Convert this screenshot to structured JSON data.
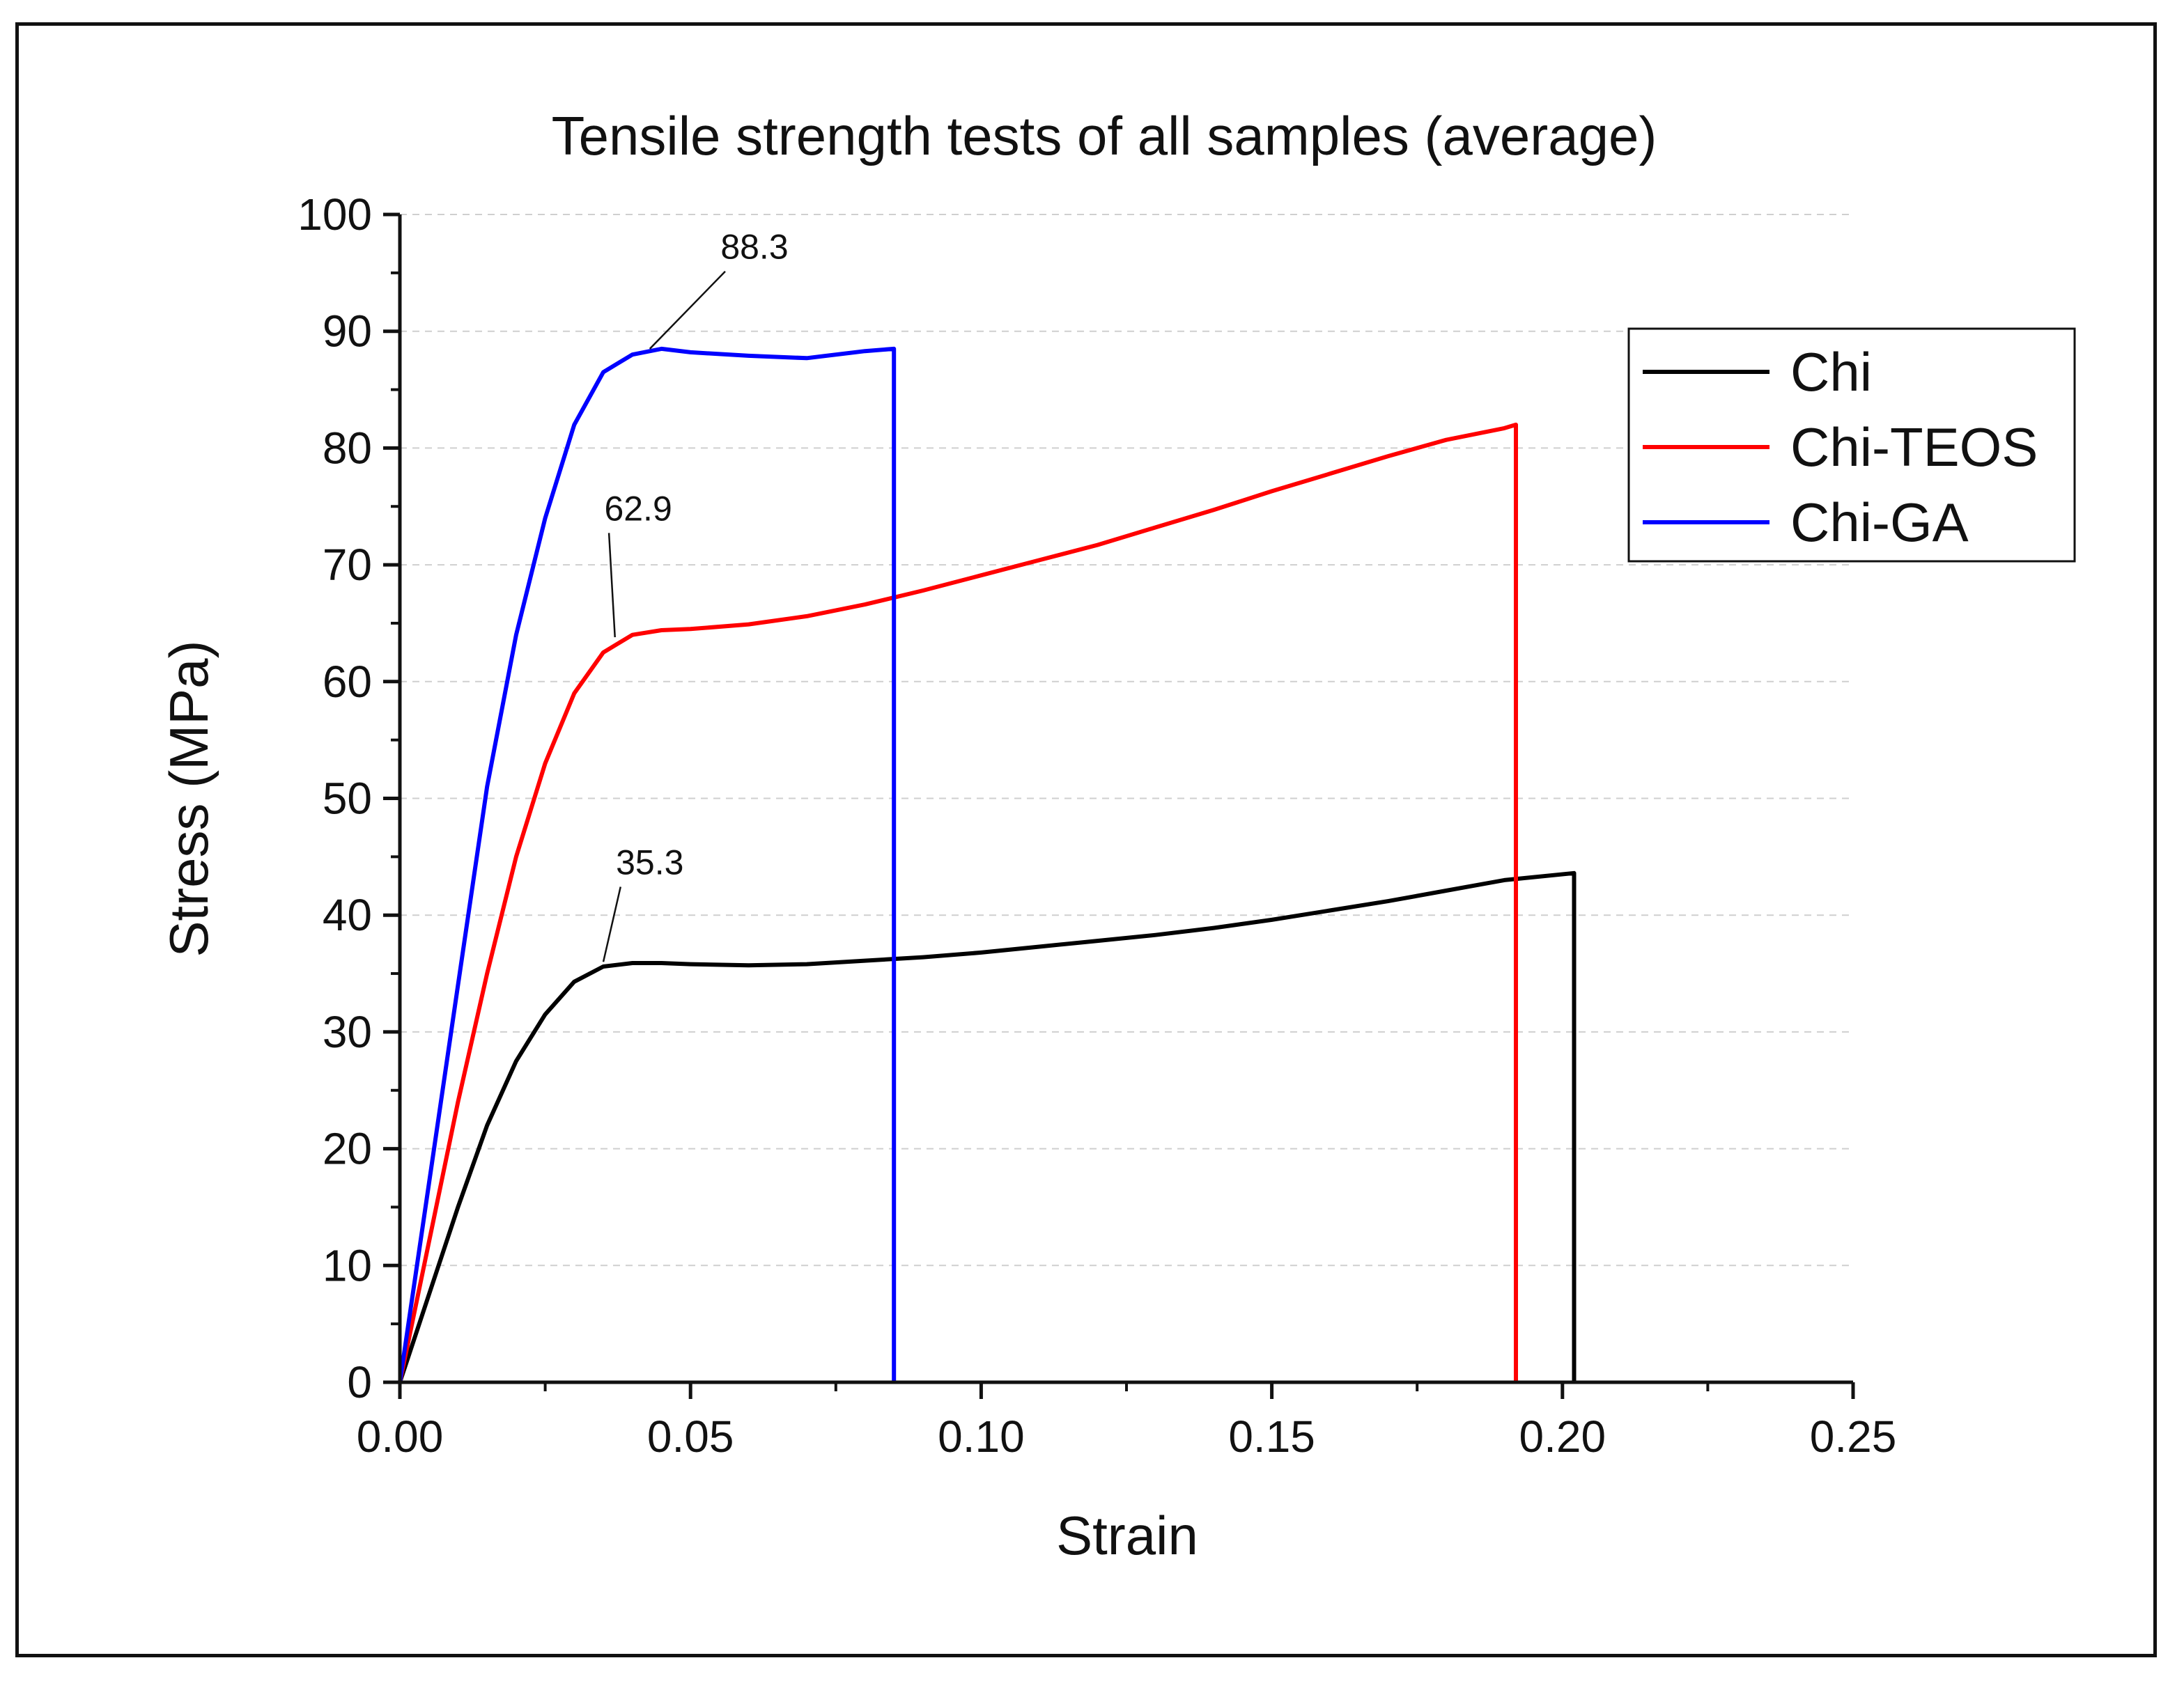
{
  "chart_data": {
    "type": "line",
    "title": "Tensile strength tests of all samples (average)",
    "xlabel": "Strain",
    "ylabel": "Stress (MPa)",
    "xlim": [
      0,
      0.25
    ],
    "ylim": [
      0,
      100
    ],
    "xticks": [
      "0.00",
      "0.05",
      "0.10",
      "0.15",
      "0.20",
      "0.25"
    ],
    "xtick_values": [
      0,
      0.05,
      0.1,
      0.15,
      0.2,
      0.25
    ],
    "yticks": [
      "0",
      "10",
      "20",
      "30",
      "40",
      "50",
      "60",
      "70",
      "80",
      "90",
      "100"
    ],
    "ytick_values": [
      0,
      10,
      20,
      30,
      40,
      50,
      60,
      70,
      80,
      90,
      100
    ],
    "grid": "horizontal dashed",
    "legend_position": "top-right",
    "series": [
      {
        "name": "Chi",
        "color": "#000000",
        "x": [
          0,
          0.005,
          0.01,
          0.015,
          0.02,
          0.025,
          0.03,
          0.035,
          0.04,
          0.045,
          0.05,
          0.06,
          0.07,
          0.08,
          0.09,
          0.1,
          0.11,
          0.12,
          0.13,
          0.14,
          0.15,
          0.16,
          0.17,
          0.18,
          0.19,
          0.202,
          0.202
        ],
        "y": [
          0,
          7.5,
          15,
          22,
          27.5,
          31.5,
          34.3,
          35.6,
          35.9,
          35.9,
          35.8,
          35.7,
          35.8,
          36.1,
          36.4,
          36.8,
          37.3,
          37.8,
          38.3,
          38.9,
          39.6,
          40.4,
          41.2,
          42.1,
          43.0,
          43.6,
          0
        ]
      },
      {
        "name": "Chi-TEOS",
        "color": "#ff0000",
        "x": [
          0,
          0.005,
          0.01,
          0.015,
          0.02,
          0.025,
          0.03,
          0.035,
          0.04,
          0.045,
          0.05,
          0.06,
          0.07,
          0.08,
          0.09,
          0.1,
          0.11,
          0.12,
          0.13,
          0.14,
          0.15,
          0.16,
          0.17,
          0.18,
          0.19,
          0.192,
          0.192
        ],
        "y": [
          0,
          12,
          24,
          35,
          45,
          53,
          59,
          62.5,
          64,
          64.4,
          64.5,
          64.9,
          65.6,
          66.6,
          67.8,
          69.1,
          70.4,
          71.7,
          73.2,
          74.7,
          76.3,
          77.8,
          79.3,
          80.7,
          81.7,
          82,
          0
        ]
      },
      {
        "name": "Chi-GA",
        "color": "#0000ff",
        "x": [
          0,
          0.005,
          0.01,
          0.015,
          0.02,
          0.025,
          0.03,
          0.035,
          0.04,
          0.045,
          0.05,
          0.06,
          0.07,
          0.08,
          0.085,
          0.085
        ],
        "y": [
          0,
          17,
          34,
          51,
          64,
          74,
          82,
          86.5,
          88,
          88.5,
          88.2,
          87.9,
          87.7,
          88.3,
          88.5,
          0
        ]
      }
    ],
    "annotations": [
      {
        "text": "88.3",
        "x": 0.043,
        "y": 88.5,
        "text_x": 0.061,
        "text_y": 96.2
      },
      {
        "text": "62.9",
        "x": 0.037,
        "y": 63.8,
        "text_x": 0.041,
        "text_y": 73.8
      },
      {
        "text": "35.3",
        "x": 0.035,
        "y": 36.0,
        "text_x": 0.043,
        "text_y": 43.5
      }
    ]
  }
}
